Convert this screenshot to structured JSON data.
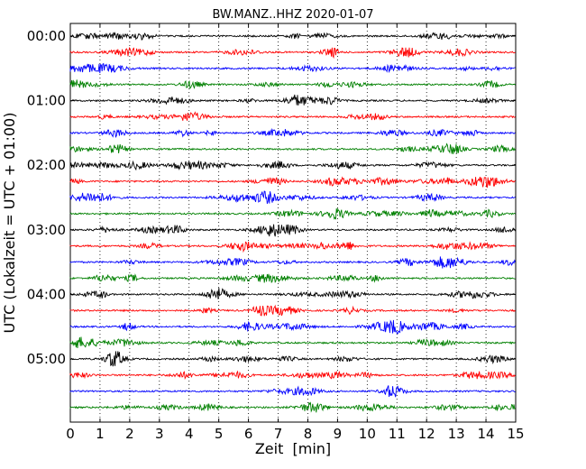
{
  "chart_data": {
    "type": "line",
    "title": "BW.MANZ..HHZ 2020-01-07",
    "xlabel": "Zeit  [min]",
    "ylabel": "UTC (Lokalzeit = UTC + 01:00)",
    "xlim": [
      0,
      15
    ],
    "x_ticks": [
      "0",
      "1",
      "2",
      "3",
      "4",
      "5",
      "6",
      "7",
      "8",
      "9",
      "10",
      "11",
      "12",
      "13",
      "14",
      "15"
    ],
    "y_tick_labels": [
      "00:00",
      "01:00",
      "02:00",
      "03:00",
      "04:00",
      "05:00"
    ],
    "traces_per_hour": 4,
    "trace_count": 24,
    "trace_interval_min": 15,
    "trace_colors": [
      "#000000",
      "#ff0000",
      "#0000ff",
      "#008000"
    ],
    "grid": {
      "vertical": true,
      "style": "dotted"
    }
  }
}
